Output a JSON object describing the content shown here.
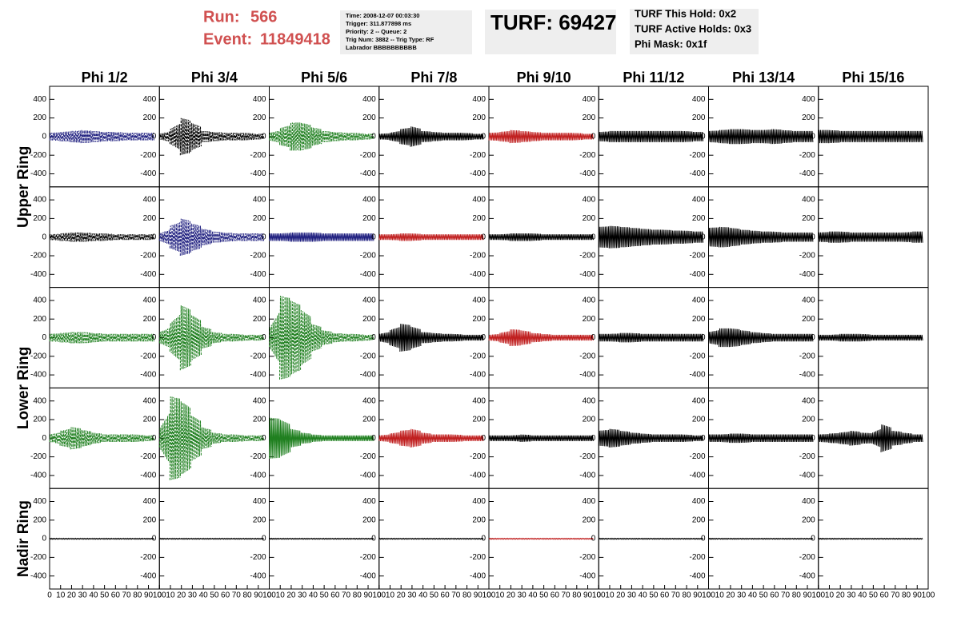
{
  "header": {
    "run_label": "Run:",
    "run": "566",
    "event_label": "Event:",
    "event": "11849418"
  },
  "info": [
    "Time: 2008-12-07 00:03:30",
    "Trigger: 311.877898 ms",
    "Priority: 2 -- Queue: 2",
    "Trig Num: 3882 -- Trig Type: RF",
    "Labrador BBBBBBBBBB"
  ],
  "turf": "TURF: 69427",
  "turf_info": [
    "TURF This Hold: 0x2",
    "TURF Active Holds: 0x3",
    "Phi Mask: 0x1f"
  ],
  "chart_data": {
    "type": "line",
    "columns": [
      "Phi 1/2",
      "Phi 3/4",
      "Phi 5/6",
      "Phi 7/8",
      "Phi 9/10",
      "Phi 11/12",
      "Phi 13/14",
      "Phi 15/16"
    ],
    "rings": [
      {
        "label": "Upper Ring",
        "rows": 2
      },
      {
        "label": "Lower Ring",
        "rows": 2
      },
      {
        "label": "Nadir Ring",
        "rows": 1
      }
    ],
    "ylim": [
      -540,
      540
    ],
    "yticks": [
      400,
      200,
      0,
      -200,
      -400
    ],
    "xlim": [
      0,
      100
    ],
    "xticks": [
      0,
      10,
      20,
      30,
      40,
      50,
      60,
      70,
      80,
      90,
      100
    ],
    "panels": [
      [
        {
          "color": "#202080",
          "dashed": true,
          "envelope": [
            40,
            50,
            60,
            70,
            60,
            50,
            50,
            40,
            40,
            40
          ]
        },
        {
          "color": "#000000",
          "dashed": true,
          "envelope": [
            30,
            80,
            200,
            150,
            60,
            50,
            40,
            40,
            40,
            30
          ]
        },
        {
          "color": "#208020",
          "dashed": true,
          "envelope": [
            40,
            90,
            150,
            150,
            100,
            60,
            50,
            40,
            40,
            30
          ]
        },
        {
          "color": "#000000",
          "dashed": false,
          "envelope": [
            30,
            40,
            80,
            110,
            60,
            50,
            40,
            40,
            40,
            30
          ]
        },
        {
          "color": "#c02020",
          "dashed": false,
          "envelope": [
            40,
            50,
            70,
            60,
            50,
            40,
            40,
            40,
            40,
            30
          ]
        },
        {
          "color": "#000000",
          "dashed": false,
          "envelope": [
            50,
            60,
            60,
            60,
            60,
            60,
            60,
            60,
            60,
            50
          ]
        },
        {
          "color": "#000000",
          "dashed": false,
          "envelope": [
            60,
            70,
            80,
            80,
            70,
            70,
            80,
            70,
            60,
            60
          ]
        },
        {
          "color": "#000000",
          "dashed": false,
          "envelope": [
            70,
            70,
            60,
            60,
            60,
            60,
            60,
            60,
            60,
            60
          ]
        }
      ],
      [
        {
          "color": "#000000",
          "dashed": true,
          "envelope": [
            30,
            40,
            50,
            50,
            40,
            40,
            30,
            30,
            30,
            30
          ]
        },
        {
          "color": "#202080",
          "dashed": true,
          "envelope": [
            40,
            120,
            200,
            150,
            90,
            60,
            50,
            40,
            40,
            40
          ]
        },
        {
          "color": "#202080",
          "dashed": false,
          "envelope": [
            40,
            40,
            50,
            50,
            50,
            40,
            40,
            40,
            40,
            40
          ]
        },
        {
          "color": "#c02020",
          "dashed": false,
          "envelope": [
            30,
            30,
            40,
            40,
            30,
            30,
            30,
            30,
            30,
            30
          ]
        },
        {
          "color": "#000000",
          "dashed": false,
          "envelope": [
            30,
            30,
            40,
            40,
            40,
            30,
            30,
            30,
            30,
            30
          ]
        },
        {
          "color": "#000000",
          "dashed": false,
          "envelope": [
            110,
            120,
            110,
            100,
            90,
            80,
            80,
            70,
            70,
            60
          ]
        },
        {
          "color": "#000000",
          "dashed": false,
          "envelope": [
            100,
            110,
            100,
            80,
            70,
            60,
            60,
            50,
            50,
            50
          ]
        },
        {
          "color": "#000000",
          "dashed": false,
          "envelope": [
            50,
            60,
            60,
            50,
            50,
            50,
            50,
            50,
            50,
            60
          ]
        }
      ],
      [
        {
          "color": "#208020",
          "dashed": true,
          "envelope": [
            40,
            50,
            60,
            60,
            50,
            40,
            40,
            40,
            40,
            40
          ]
        },
        {
          "color": "#208020",
          "dashed": true,
          "envelope": [
            60,
            150,
            350,
            250,
            120,
            60,
            40,
            40,
            30,
            30
          ]
        },
        {
          "color": "#208020",
          "dashed": true,
          "envelope": [
            100,
            450,
            400,
            300,
            150,
            80,
            50,
            40,
            40,
            30
          ]
        },
        {
          "color": "#000000",
          "dashed": false,
          "envelope": [
            40,
            80,
            150,
            120,
            60,
            50,
            40,
            40,
            30,
            30
          ]
        },
        {
          "color": "#c02020",
          "dashed": false,
          "envelope": [
            30,
            50,
            90,
            80,
            50,
            40,
            30,
            30,
            30,
            30
          ]
        },
        {
          "color": "#000000",
          "dashed": false,
          "envelope": [
            40,
            40,
            50,
            50,
            40,
            40,
            40,
            40,
            40,
            40
          ]
        },
        {
          "color": "#000000",
          "dashed": false,
          "envelope": [
            60,
            100,
            100,
            80,
            60,
            50,
            40,
            40,
            40,
            40
          ]
        },
        {
          "color": "#000000",
          "dashed": false,
          "envelope": [
            30,
            30,
            40,
            40,
            40,
            30,
            30,
            30,
            30,
            30
          ]
        }
      ],
      [
        {
          "color": "#208020",
          "dashed": true,
          "envelope": [
            40,
            80,
            120,
            90,
            60,
            40,
            40,
            40,
            40,
            30
          ]
        },
        {
          "color": "#208020",
          "dashed": true,
          "envelope": [
            100,
            450,
            400,
            250,
            120,
            60,
            40,
            40,
            30,
            30
          ]
        },
        {
          "color": "#208020",
          "dashed": false,
          "envelope": [
            220,
            200,
            100,
            60,
            40,
            30,
            30,
            30,
            30,
            30
          ]
        },
        {
          "color": "#c02020",
          "dashed": false,
          "envelope": [
            30,
            50,
            80,
            100,
            60,
            40,
            40,
            40,
            30,
            30
          ]
        },
        {
          "color": "#000000",
          "dashed": false,
          "envelope": [
            30,
            30,
            30,
            40,
            30,
            30,
            30,
            30,
            30,
            30
          ]
        },
        {
          "color": "#000000",
          "dashed": false,
          "envelope": [
            80,
            100,
            80,
            60,
            50,
            40,
            40,
            40,
            40,
            30
          ]
        },
        {
          "color": "#000000",
          "dashed": false,
          "envelope": [
            40,
            40,
            50,
            50,
            40,
            40,
            40,
            40,
            40,
            40
          ]
        },
        {
          "color": "#000000",
          "dashed": false,
          "envelope": [
            40,
            50,
            60,
            80,
            60,
            50,
            150,
            80,
            60,
            40
          ]
        }
      ],
      [
        {
          "color": "#000000",
          "dashed": false,
          "envelope": [
            5,
            5,
            5,
            5,
            5,
            5,
            5,
            5,
            5,
            5
          ]
        },
        {
          "color": "#000000",
          "dashed": false,
          "envelope": [
            5,
            5,
            5,
            5,
            5,
            5,
            5,
            5,
            5,
            5
          ]
        },
        {
          "color": "#000000",
          "dashed": false,
          "envelope": [
            5,
            5,
            5,
            5,
            5,
            5,
            5,
            5,
            5,
            5
          ]
        },
        {
          "color": "#000000",
          "dashed": false,
          "envelope": [
            5,
            5,
            5,
            5,
            5,
            5,
            5,
            5,
            5,
            5
          ]
        },
        {
          "color": "#c02020",
          "dashed": false,
          "envelope": [
            5,
            5,
            5,
            5,
            5,
            5,
            5,
            5,
            5,
            5
          ]
        },
        {
          "color": "#000000",
          "dashed": false,
          "envelope": [
            5,
            5,
            5,
            5,
            5,
            5,
            5,
            5,
            5,
            5
          ]
        },
        {
          "color": "#000000",
          "dashed": false,
          "envelope": [
            5,
            5,
            5,
            5,
            5,
            5,
            5,
            5,
            5,
            5
          ]
        },
        {
          "color": "#000000",
          "dashed": false,
          "envelope": [
            5,
            5,
            5,
            5,
            5,
            5,
            5,
            5,
            5,
            5
          ]
        }
      ]
    ]
  }
}
